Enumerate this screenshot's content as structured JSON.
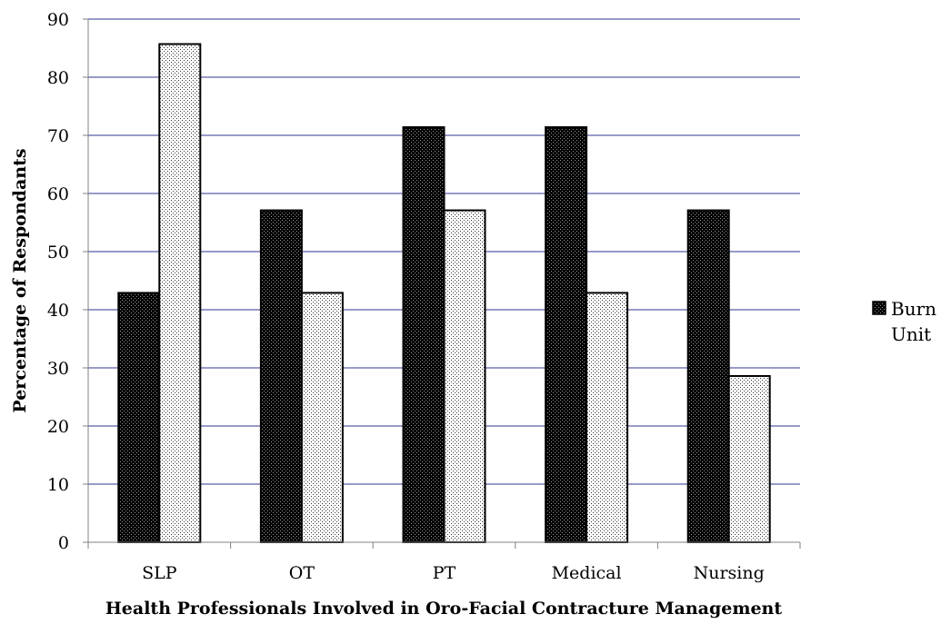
{
  "chart_data": {
    "type": "bar",
    "categories": [
      "SLP",
      "OT",
      "PT",
      "Medical",
      "Nursing"
    ],
    "series": [
      {
        "name": "Burn Unit",
        "values": [
          42.9,
          57.1,
          71.4,
          71.4,
          57.1
        ],
        "pattern": "dark-dots"
      },
      {
        "name": "",
        "values": [
          85.7,
          42.9,
          57.1,
          42.9,
          28.6
        ],
        "pattern": "light-dots"
      }
    ],
    "xlabel": "Health Professionals Involved in Oro-Facial Contracture Management",
    "ylabel": "Percentage of Respondants",
    "ylim": [
      0,
      90
    ],
    "yticks": [
      "0",
      "10",
      "20",
      "30",
      "40",
      "50",
      "60",
      "70",
      "80",
      "90"
    ],
    "grid": true,
    "gridline_color": "#5b5ea6",
    "legend_position": "right",
    "legend_lines": [
      "Burn",
      "Unit"
    ]
  }
}
